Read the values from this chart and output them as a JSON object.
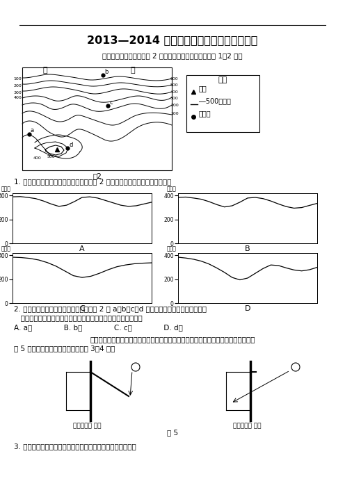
{
  "title": "2013—2014 学年度高三第七次月考地理试题",
  "subtitle": "某中学地理学习小组对图 2 所示区域进行考察，读图回答 1～2 题。",
  "q1_text": "1. 在同学们绘制的地形剂面图中，依据图 2 甲、乙两处连线绘制的是（　　）",
  "q2_line1": "2. 为了保护生态环境，当地政府计划将图 2 中 a、b、c、d 四处居民点集中到一处，地理小",
  "q2_line2": "   组建议居民点集中建在水源最丰富的地方。该地应选在（　　）",
  "q2_choices": "A. a处              B. b处              C. c处              D. d处",
  "q3_intro": "新密某中学研究性学习小组，设计了可调节窗户遮阳板，实现教室良好的遮阳与采光。",
  "fig5_caption": "图 5 示意遮阳板设计原理，据此回答 3～4 题。",
  "q3_text": "3. 遮阳板收起，室内正午太阳光照面积达一年最大値时（　）",
  "legend_title": "图例",
  "legend_peak": "山峰",
  "legend_contour": "―500等高线",
  "legend_village": "居民点",
  "map_label": "图2",
  "fig5_label": "图 5",
  "jia": "甲",
  "yi": "乙",
  "label_a": "a",
  "label_b": "b",
  "label_c": "c",
  "label_d": "d",
  "shade_down": "遮阳板放下 遮阳",
  "shade_up": "遮阳板收起 采光",
  "background_color": "#ffffff"
}
